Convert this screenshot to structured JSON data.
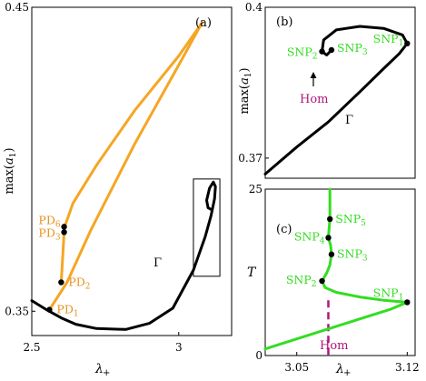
{
  "chart_data": [
    {
      "panel": "a",
      "type": "line",
      "panel_label": "(a)",
      "xlabel": "λ+",
      "ylabel": "max(a1)",
      "xlim": [
        2.5,
        3.18
      ],
      "ylim": [
        0.342,
        0.45
      ],
      "xticks": [
        2.5,
        3
      ],
      "xtick_labels": [
        "2.5",
        "3"
      ],
      "yticks": [
        0.35,
        0.45
      ],
      "ytick_labels": [
        "0.35",
        "0.45"
      ],
      "curve_label": "Γ",
      "colors": {
        "main": "#000000",
        "branch_light": "#f5a623",
        "branch_dark": "#c8860a",
        "label": "#e8901a"
      },
      "series": [
        {
          "role": "gamma",
          "color": "#000000",
          "x": [
            2.5,
            2.55,
            2.6,
            2.65,
            2.72,
            2.82,
            2.9,
            2.98,
            3.05,
            3.09,
            3.11,
            3.122,
            3.125,
            3.118,
            3.105,
            3.095,
            3.1,
            3.11,
            3.11
          ],
          "y": [
            0.3535,
            0.3505,
            0.3478,
            0.3457,
            0.3443,
            0.344,
            0.346,
            0.351,
            0.3635,
            0.3745,
            0.3815,
            0.387,
            0.391,
            0.3925,
            0.3905,
            0.3865,
            0.384,
            0.3835,
            0.3835
          ]
        },
        {
          "role": "pd-branch-lower",
          "color": "#f5a623",
          "x": [
            2.56,
            2.6,
            2.62,
            2.7,
            2.85,
            3.0,
            3.08
          ],
          "y": [
            0.3505,
            0.3565,
            0.3595,
            0.3765,
            0.405,
            0.431,
            0.445
          ]
        },
        {
          "role": "pd-branch-upper",
          "color": "#f5a623",
          "x": [
            2.61,
            2.612,
            2.64,
            2.72,
            2.85,
            3.0,
            3.08
          ],
          "y": [
            0.376,
            0.3778,
            0.3855,
            0.398,
            0.416,
            0.434,
            0.445
          ]
        },
        {
          "role": "pd-branch-connector",
          "color": "#f5a623",
          "x": [
            2.6,
            2.61
          ],
          "y": [
            0.3595,
            0.376
          ]
        }
      ],
      "points": [
        {
          "label": "PD1",
          "x": 2.56,
          "y": 0.3505
        },
        {
          "label": "PD2",
          "x": 2.6,
          "y": 0.3595
        },
        {
          "label": "PD3",
          "x": 2.61,
          "y": 0.376
        },
        {
          "label": "PD6",
          "x": 2.61,
          "y": 0.3778
        }
      ],
      "point_text": {
        "PD1": [
          "PD",
          "1"
        ],
        "PD2": [
          "PD",
          "2"
        ],
        "PD3": [
          "PD",
          "3"
        ],
        "PD6": [
          "PD",
          "6"
        ]
      },
      "zoom_box": {
        "x": [
          3.05,
          3.14
        ],
        "y": [
          0.3615,
          0.3935
        ]
      }
    },
    {
      "panel": "b",
      "type": "line",
      "panel_label": "(b)",
      "ylabel": "max(a1)",
      "xlim": [
        3.03,
        3.125
      ],
      "ylim": [
        0.366,
        0.4
      ],
      "yticks": [
        0.37,
        0.4
      ],
      "ytick_labels": [
        "0.37",
        "0.4"
      ],
      "curve_label": "Γ",
      "colors": {
        "curve": "#000000",
        "snp": "#33dd22",
        "hom": "#b0167a"
      },
      "series": [
        {
          "role": "gamma",
          "color": "#000000",
          "x": [
            3.03,
            3.05,
            3.07,
            3.09,
            3.105,
            3.115,
            3.12,
            3.117,
            3.105,
            3.09,
            3.075,
            3.067,
            3.066,
            3.069,
            3.072
          ],
          "y": [
            0.36684,
            0.3722,
            0.3772,
            0.3832,
            0.3878,
            0.3908,
            0.3928,
            0.3945,
            0.3958,
            0.3962,
            0.3955,
            0.3935,
            0.3912,
            0.3905,
            0.3915
          ]
        }
      ],
      "points": [
        {
          "label": "SNP1",
          "x": 3.12,
          "y": 0.3928
        },
        {
          "label": "SNP2",
          "x": 3.066,
          "y": 0.3912
        },
        {
          "label": "SNP3",
          "x": 3.072,
          "y": 0.3915
        }
      ],
      "point_text": {
        "SNP1": [
          "SNP",
          "1"
        ],
        "SNP2": [
          "SNP",
          "2"
        ],
        "SNP3": [
          "SNP",
          "3"
        ]
      },
      "hom_label": "Hom",
      "hom_arrow_target": {
        "x": 3.069,
        "y": 0.3905
      }
    },
    {
      "panel": "c",
      "type": "line",
      "panel_label": "(c)",
      "xlabel": "λ+",
      "ylabel": "T",
      "xlim": [
        3.03,
        3.125
      ],
      "ylim": [
        0,
        25
      ],
      "xticks": [
        3.05,
        3.12
      ],
      "xtick_labels": [
        "3.05",
        "3.12"
      ],
      "yticks": [
        0,
        25
      ],
      "ytick_labels": [
        "0",
        "25"
      ],
      "colors": {
        "curve": "#33dd22",
        "snp": "#33dd22",
        "hom": "#b0167a"
      },
      "series": [
        {
          "role": "period",
          "color": "#33dd22",
          "x": [
            3.03,
            3.05,
            3.07,
            3.09,
            3.11,
            3.12,
            3.105,
            3.09,
            3.075,
            3.068,
            3.066,
            3.069,
            3.071,
            3.072,
            3.0715,
            3.07,
            3.0705,
            3.071,
            3.071,
            3.071
          ],
          "y": [
            1.0,
            2.5,
            4.0,
            5.5,
            7.0,
            8.0,
            8.3,
            8.8,
            9.5,
            10.2,
            11.2,
            12.4,
            13.6,
            15.2,
            16.5,
            17.7,
            19.0,
            20.5,
            22.5,
            25
          ]
        }
      ],
      "points": [
        {
          "label": "SNP1",
          "x": 3.12,
          "y": 8.0
        },
        {
          "label": "SNP2",
          "x": 3.066,
          "y": 11.2
        },
        {
          "label": "SNP3",
          "x": 3.072,
          "y": 15.2
        },
        {
          "label": "SNP4",
          "x": 3.07,
          "y": 17.7
        },
        {
          "label": "SNP5",
          "x": 3.071,
          "y": 20.5
        }
      ],
      "point_text": {
        "SNP1": [
          "SNP",
          "1"
        ],
        "SNP2": [
          "SNP",
          "2"
        ],
        "SNP3": [
          "SNP",
          "3"
        ],
        "SNP4": [
          "SNP",
          "4"
        ],
        "SNP5": [
          "SNP",
          "5"
        ]
      },
      "hom_label": "Hom",
      "hom_line_x": 3.07
    }
  ]
}
